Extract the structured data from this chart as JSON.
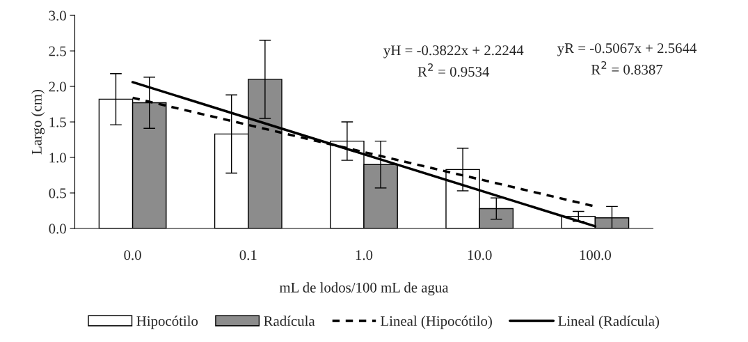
{
  "chart_data": {
    "type": "bar",
    "xlabel": "mL de lodos/100 mL de agua",
    "ylabel": "Largo (cm)",
    "categories": [
      "0.0",
      "0.1",
      "1.0",
      "10.0",
      "100.0"
    ],
    "series": [
      {
        "name": "Hipocótilo",
        "color": "#ffffff",
        "values": [
          1.82,
          1.33,
          1.23,
          0.83,
          0.17
        ],
        "errors": [
          0.36,
          0.55,
          0.27,
          0.3,
          0.07
        ]
      },
      {
        "name": "Radícula",
        "color": "#8c8c8c",
        "values": [
          1.77,
          2.1,
          0.9,
          0.28,
          0.15
        ],
        "errors": [
          0.36,
          0.55,
          0.33,
          0.15,
          0.16
        ]
      },
      {
        "name": "Lineal (Hipocótilo)",
        "type": "line",
        "line_style": "dashed",
        "color": "#000000",
        "x": [
          "0.0",
          "100.0"
        ],
        "values": [
          1.84,
          0.31
        ]
      },
      {
        "name": "Lineal (Radícula)",
        "type": "line",
        "line_style": "solid",
        "color": "#000000",
        "x": [
          "0.0",
          "100.0"
        ],
        "values": [
          2.06,
          0.03
        ]
      }
    ],
    "ylim": [
      0,
      3
    ],
    "yticks": [
      {
        "value": 0,
        "label": "0.0"
      },
      {
        "value": 0.5,
        "label": "0.5"
      },
      {
        "value": 1,
        "label": "1.0"
      },
      {
        "value": 1.5,
        "label": "1.5"
      },
      {
        "value": 2,
        "label": "2.0"
      },
      {
        "value": 2.5,
        "label": "2.5"
      },
      {
        "value": 3,
        "label": "3.0"
      }
    ],
    "annotations": [
      "yH = -0.3822x + 2.2244",
      "R$^{2}$ = 0.9534",
      "yR = -0.5067x + 2.5644",
      "R$^{2}$ = 0.8387"
    ],
    "grid": false,
    "legend": "bottom"
  }
}
